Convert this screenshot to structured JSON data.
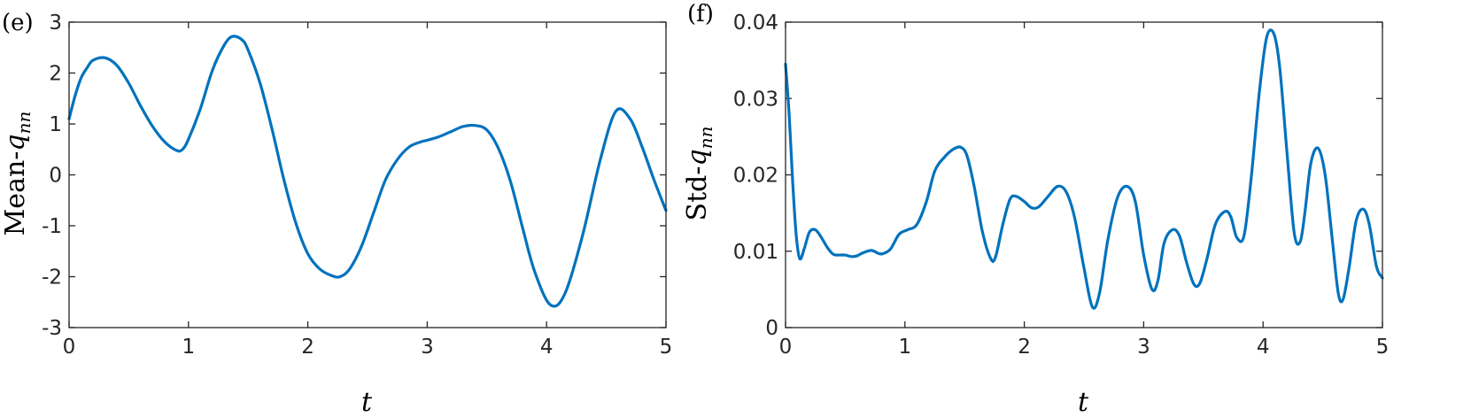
{
  "colors": {
    "series": "#0072BD",
    "axis": "#262626"
  },
  "chart_data": [
    {
      "type": "line",
      "panel_label": "(e)",
      "xlabel": "t",
      "ylabel_prefix": "Mean-",
      "ylabel_var": "q",
      "ylabel_sub": "nn",
      "xlim": [
        0,
        5
      ],
      "ylim": [
        -3,
        3
      ],
      "xticks": [
        0,
        1,
        2,
        3,
        4,
        5
      ],
      "yticks": [
        -3,
        -2,
        -1,
        0,
        1,
        2,
        3
      ],
      "grid": false,
      "series": [
        {
          "x": [
            0,
            0.05,
            0.1,
            0.15,
            0.2,
            0.3,
            0.4,
            0.5,
            0.6,
            0.7,
            0.8,
            0.9,
            0.95,
            1.0,
            1.1,
            1.2,
            1.3,
            1.37,
            1.45,
            1.5,
            1.6,
            1.7,
            1.8,
            1.9,
            2.0,
            2.1,
            2.2,
            2.27,
            2.35,
            2.45,
            2.55,
            2.65,
            2.75,
            2.85,
            2.95,
            3.0,
            3.1,
            3.2,
            3.3,
            3.4,
            3.5,
            3.6,
            3.7,
            3.8,
            3.9,
            4.03,
            4.15,
            4.3,
            4.45,
            4.58,
            4.7,
            4.8,
            4.9,
            5.0
          ],
          "y": [
            1.1,
            1.55,
            1.9,
            2.1,
            2.25,
            2.3,
            2.15,
            1.8,
            1.35,
            0.95,
            0.65,
            0.48,
            0.5,
            0.7,
            1.3,
            2.05,
            2.55,
            2.72,
            2.65,
            2.45,
            1.8,
            0.9,
            -0.1,
            -0.95,
            -1.55,
            -1.85,
            -1.98,
            -2.0,
            -1.85,
            -1.4,
            -0.75,
            -0.1,
            0.3,
            0.55,
            0.65,
            0.68,
            0.75,
            0.85,
            0.95,
            0.97,
            0.88,
            0.5,
            -0.15,
            -1.05,
            -1.9,
            -2.55,
            -2.35,
            -1.2,
            0.3,
            1.25,
            1.1,
            0.55,
            -0.1,
            -0.7
          ]
        }
      ]
    },
    {
      "type": "line",
      "panel_label": "(f)",
      "xlabel": "t",
      "ylabel_prefix": "Std-",
      "ylabel_var": "q",
      "ylabel_sub": "nn",
      "xlim": [
        0,
        5
      ],
      "ylim": [
        0,
        0.04
      ],
      "xticks": [
        0,
        1,
        2,
        3,
        4,
        5
      ],
      "yticks": [
        0,
        0.01,
        0.02,
        0.03,
        0.04
      ],
      "grid": false,
      "series": [
        {
          "x": [
            0,
            0.03,
            0.06,
            0.09,
            0.12,
            0.16,
            0.2,
            0.25,
            0.3,
            0.35,
            0.4,
            0.45,
            0.5,
            0.55,
            0.6,
            0.65,
            0.72,
            0.78,
            0.82,
            0.88,
            0.95,
            1.02,
            1.1,
            1.18,
            1.25,
            1.33,
            1.41,
            1.47,
            1.52,
            1.58,
            1.65,
            1.72,
            1.76,
            1.82,
            1.88,
            1.93,
            2.0,
            2.06,
            2.12,
            2.2,
            2.28,
            2.35,
            2.42,
            2.5,
            2.57,
            2.63,
            2.7,
            2.78,
            2.86,
            2.93,
            3.0,
            3.07,
            3.12,
            3.17,
            3.24,
            3.3,
            3.36,
            3.42,
            3.47,
            3.53,
            3.6,
            3.68,
            3.73,
            3.78,
            3.84,
            3.9,
            3.97,
            4.03,
            4.09,
            4.14,
            4.2,
            4.26,
            4.31,
            4.35,
            4.4,
            4.46,
            4.52,
            4.58,
            4.63,
            4.67,
            4.72,
            4.78,
            4.84,
            4.89,
            4.95,
            5.0
          ],
          "y": [
            0.0345,
            0.028,
            0.019,
            0.012,
            0.009,
            0.0105,
            0.0125,
            0.0128,
            0.0118,
            0.0105,
            0.0096,
            0.0095,
            0.0095,
            0.0093,
            0.0094,
            0.0098,
            0.0101,
            0.0097,
            0.0097,
            0.0103,
            0.0122,
            0.0128,
            0.0135,
            0.0165,
            0.0205,
            0.0223,
            0.0234,
            0.0236,
            0.0225,
            0.0185,
            0.0125,
            0.009,
            0.0093,
            0.0135,
            0.0168,
            0.0172,
            0.0165,
            0.0157,
            0.0158,
            0.0172,
            0.0185,
            0.0178,
            0.0145,
            0.0078,
            0.0027,
            0.0045,
            0.0115,
            0.017,
            0.0185,
            0.0165,
            0.0095,
            0.005,
            0.0062,
            0.011,
            0.0128,
            0.012,
            0.0085,
            0.0057,
            0.0058,
            0.009,
            0.0135,
            0.0152,
            0.0145,
            0.0118,
            0.012,
            0.0195,
            0.031,
            0.038,
            0.0385,
            0.034,
            0.023,
            0.0125,
            0.0112,
            0.015,
            0.0215,
            0.0235,
            0.02,
            0.0115,
            0.0045,
            0.0037,
            0.0078,
            0.014,
            0.0155,
            0.0135,
            0.008,
            0.0065
          ]
        }
      ]
    }
  ]
}
